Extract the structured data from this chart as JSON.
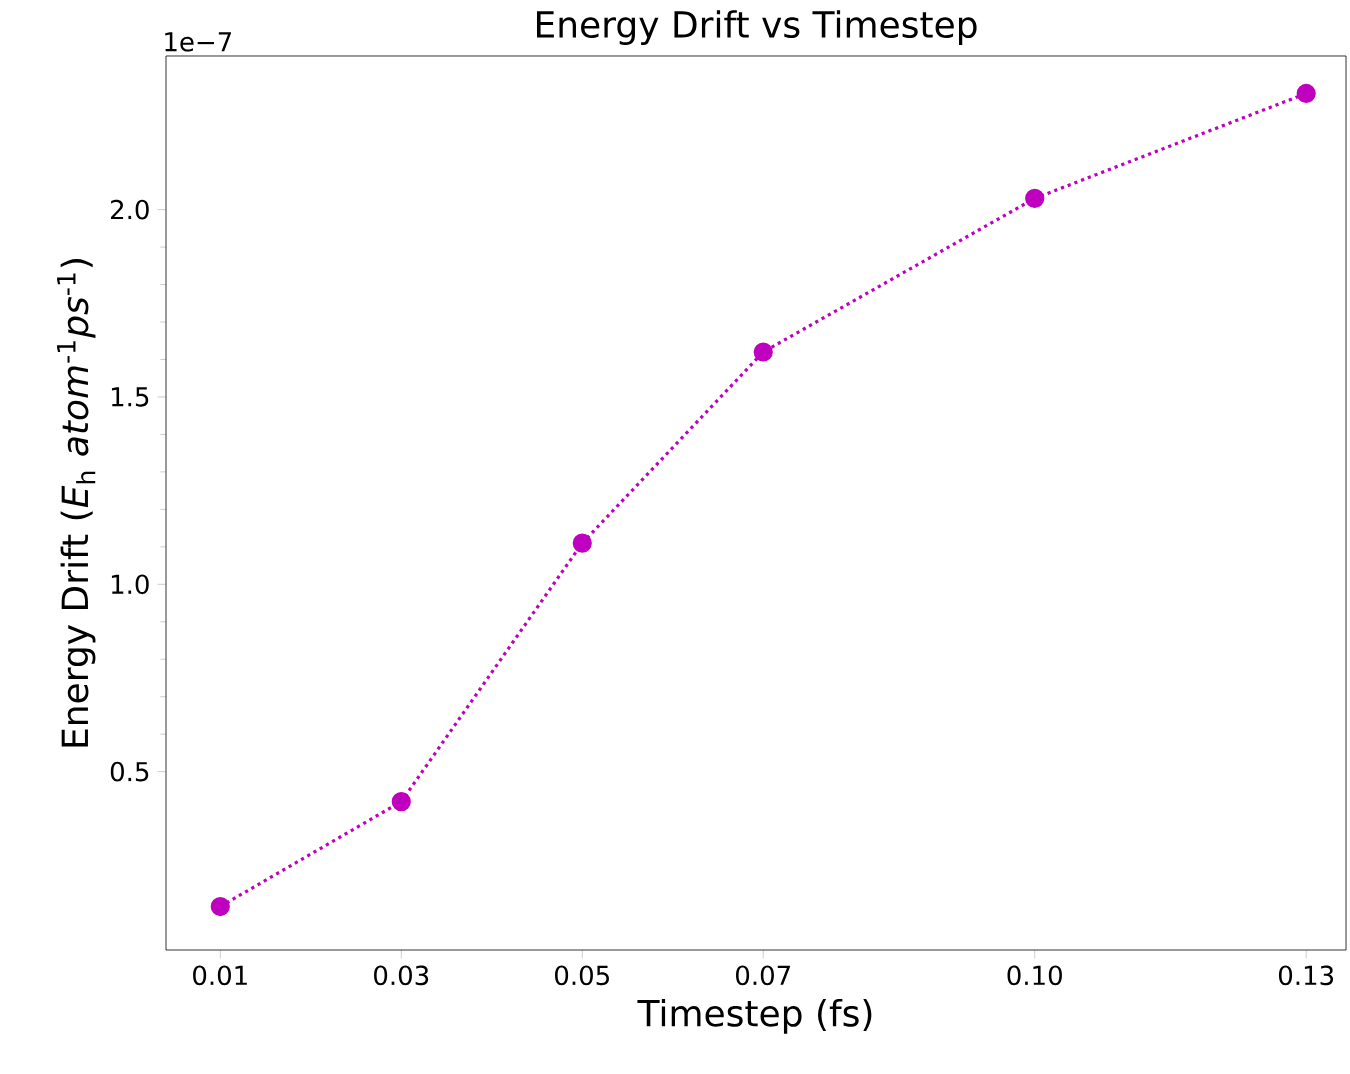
{
  "chart_data": {
    "type": "line",
    "title": "Energy Drift vs Timestep",
    "xlabel": "Timestep (fs)",
    "ylabel": "Energy Drift (*E*$_{h}$ *atom*$^{-1}$*ps*$^{-1}$)",
    "x": [
      0.01,
      0.03,
      0.05,
      0.07,
      0.1,
      0.13
    ],
    "series": [
      {
        "color": "#bf00bf",
        "values": [
          0.14,
          0.42,
          1.11,
          1.62,
          2.03,
          2.31
        ]
      }
    ],
    "marker": "circle",
    "line_style": "dotted",
    "xlim": [
      0.004,
      0.1344
    ],
    "ylim": [
      0.024,
      2.41
    ],
    "xticks": [
      0.01,
      0.03,
      0.05,
      0.07,
      {
        "value": 0.1,
        "label": "0.10"
      },
      0.13
    ],
    "yticks": [
      {
        "value": 0.5,
        "label": "0.5"
      },
      {
        "value": 1.0,
        "label": "1.0"
      },
      {
        "value": 1.5,
        "label": "1.5"
      },
      {
        "value": 2.0,
        "label": "2.0"
      }
    ],
    "annotations": [
      "1e−7"
    ]
  }
}
